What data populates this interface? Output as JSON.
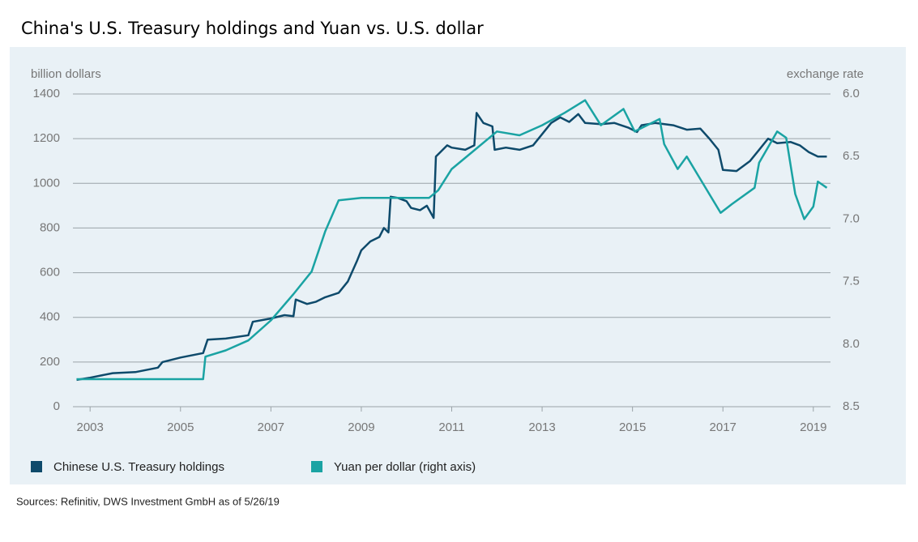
{
  "chart_data": {
    "type": "line",
    "title": "China's U.S. Treasury holdings and Yuan vs. U.S. dollar",
    "y_label": "billion dollars",
    "y2_label": "exchange rate",
    "source": "Sources: Refinitiv, DWS Investment GmbH as of 5/26/19",
    "xlim": [
      2002.62,
      2019.38
    ],
    "xticks": [
      2003,
      2005,
      2007,
      2009,
      2011,
      2013,
      2015,
      2017,
      2019
    ],
    "ylim": [
      0,
      1400
    ],
    "yticks": [
      0,
      200,
      400,
      600,
      800,
      1000,
      1200,
      1400
    ],
    "y2lim": [
      8.5,
      6.0
    ],
    "y2ticks": [
      {
        "value": 6,
        "label": "6.0"
      },
      6.5,
      {
        "value": 7,
        "label": "7.0"
      },
      7.5,
      {
        "value": 8,
        "label": "8.0"
      },
      8.5
    ],
    "grid": true,
    "legend": "bottom",
    "series": [
      {
        "name": "Chinese U.S. Treasury holdings",
        "color": "#0e4a6b",
        "x": [
          2002.7,
          2003.0,
          2003.5,
          2004.0,
          2004.5,
          2004.6,
          2005.0,
          2005.5,
          2005.6,
          2006.0,
          2006.5,
          2006.6,
          2007.0,
          2007.3,
          2007.5,
          2007.55,
          2007.8,
          2008.0,
          2008.2,
          2008.5,
          2008.7,
          2008.9,
          2009.0,
          2009.2,
          2009.4,
          2009.5,
          2009.6,
          2009.65,
          2009.8,
          2010.0,
          2010.1,
          2010.3,
          2010.45,
          2010.6,
          2010.65,
          2010.9,
          2011.0,
          2011.3,
          2011.5,
          2011.55,
          2011.7,
          2011.9,
          2011.95,
          2012.2,
          2012.5,
          2012.8,
          2013.0,
          2013.2,
          2013.4,
          2013.6,
          2013.8,
          2013.95,
          2014.3,
          2014.6,
          2014.9,
          2015.1,
          2015.2,
          2015.5,
          2015.9,
          2016.2,
          2016.5,
          2016.7,
          2016.9,
          2017.0,
          2017.3,
          2017.6,
          2017.8,
          2018.0,
          2018.2,
          2018.5,
          2018.7,
          2018.9,
          2019.1,
          2019.3
        ],
        "values": [
          120,
          130,
          150,
          155,
          175,
          200,
          220,
          240,
          300,
          305,
          320,
          380,
          395,
          410,
          405,
          480,
          460,
          470,
          490,
          510,
          560,
          650,
          700,
          740,
          760,
          800,
          780,
          940,
          935,
          920,
          890,
          880,
          900,
          845,
          1120,
          1170,
          1160,
          1150,
          1170,
          1315,
          1270,
          1255,
          1150,
          1160,
          1150,
          1170,
          1220,
          1270,
          1295,
          1275,
          1310,
          1270,
          1265,
          1270,
          1250,
          1230,
          1260,
          1270,
          1260,
          1240,
          1245,
          1200,
          1150,
          1060,
          1055,
          1100,
          1150,
          1200,
          1180,
          1185,
          1170,
          1140,
          1120,
          1120
        ]
      },
      {
        "name": "Yuan per dollar (right axis)",
        "color": "#1aa3a3",
        "axis": "y2",
        "x": [
          2002.7,
          2005.5,
          2005.55,
          2006.0,
          2006.5,
          2007.0,
          2007.5,
          2007.9,
          2008.2,
          2008.5,
          2009.0,
          2010.5,
          2010.7,
          2011.0,
          2011.5,
          2012.0,
          2012.5,
          2013.0,
          2013.5,
          2013.95,
          2014.3,
          2014.8,
          2015.05,
          2015.6,
          2015.7,
          2016.0,
          2016.2,
          2016.5,
          2016.95,
          2017.2,
          2017.7,
          2017.8,
          2018.2,
          2018.4,
          2018.6,
          2018.8,
          2019.0,
          2019.1,
          2019.3
        ],
        "values": [
          8.28,
          8.28,
          8.1,
          8.05,
          7.97,
          7.81,
          7.6,
          7.42,
          7.1,
          6.85,
          6.83,
          6.83,
          6.77,
          6.6,
          6.45,
          6.3,
          6.33,
          6.25,
          6.15,
          6.05,
          6.25,
          6.12,
          6.3,
          6.2,
          6.4,
          6.6,
          6.5,
          6.68,
          6.95,
          6.88,
          6.75,
          6.55,
          6.3,
          6.35,
          6.8,
          7.0,
          6.9,
          6.7,
          6.75
        ]
      }
    ]
  }
}
